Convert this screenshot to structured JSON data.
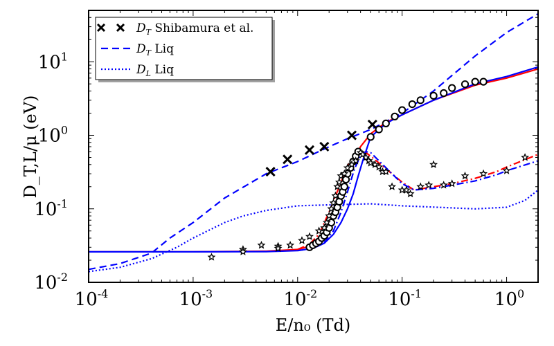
{
  "chart_data": {
    "type": "line",
    "xscale": "log",
    "yscale": "log",
    "xlim": [
      0.0001,
      2
    ],
    "ylim": [
      0.01,
      50
    ],
    "xlabel": "E/n₀ (Td)",
    "ylabel": "D_T,L/μ (eV)",
    "x_ticks": [
      {
        "value": 0.0001,
        "base": "10",
        "exp": "-4"
      },
      {
        "value": 0.001,
        "base": "10",
        "exp": "-3"
      },
      {
        "value": 0.01,
        "base": "10",
        "exp": "-2"
      },
      {
        "value": 0.1,
        "base": "10",
        "exp": "-1"
      },
      {
        "value": 1,
        "base": "10",
        "exp": "0"
      }
    ],
    "y_ticks": [
      {
        "value": 0.01,
        "base": "10",
        "exp": "-2"
      },
      {
        "value": 0.1,
        "base": "10",
        "exp": "-1"
      },
      {
        "value": 1,
        "base": "10",
        "exp": "0"
      },
      {
        "value": 10,
        "base": "10",
        "exp": "1"
      }
    ],
    "legend": {
      "placement": "top-left",
      "entries": [
        {
          "symbol": "D",
          "sub": "T",
          "text": "Shibamura et al.",
          "marker": "x",
          "color": "#000000"
        },
        {
          "symbol": "D",
          "sub": "T",
          "text": "Liq",
          "style": "dashed",
          "color": "#0000ff"
        },
        {
          "symbol": "D",
          "sub": "L",
          "text": "Liq",
          "style": "dotted",
          "color": "#0000ff"
        }
      ]
    },
    "series": [
      {
        "name": "D_T Liq",
        "style": "dashed",
        "color": "#0000ff",
        "x": [
          0.0001,
          0.0002,
          0.0004,
          0.0006,
          0.001,
          0.002,
          0.005,
          0.01,
          0.02,
          0.03,
          0.05,
          0.1,
          0.2,
          0.5,
          1,
          2
        ],
        "y": [
          0.015,
          0.018,
          0.025,
          0.04,
          0.065,
          0.14,
          0.3,
          0.44,
          0.7,
          0.9,
          1.2,
          2.0,
          4.0,
          12,
          25,
          45
        ]
      },
      {
        "name": "D_L Liq",
        "style": "dotted",
        "color": "#0000ff",
        "x": [
          0.0001,
          0.0002,
          0.0004,
          0.0007,
          0.001,
          0.002,
          0.003,
          0.005,
          0.01,
          0.03,
          0.05,
          0.1,
          0.3,
          0.5,
          1,
          1.5,
          2
        ],
        "y": [
          0.014,
          0.016,
          0.021,
          0.03,
          0.04,
          0.065,
          0.08,
          0.095,
          0.11,
          0.115,
          0.117,
          0.11,
          0.103,
          0.1,
          0.105,
          0.13,
          0.18
        ]
      },
      {
        "name": "D_T calc (red)",
        "style": "solid",
        "color": "#ff0000",
        "x": [
          0.0001,
          0.001,
          0.005,
          0.01,
          0.013,
          0.016,
          0.019,
          0.022,
          0.025,
          0.028,
          0.032,
          0.036,
          0.04,
          0.05,
          0.07,
          0.1,
          0.2,
          0.5,
          1,
          2
        ],
        "y": [
          0.026,
          0.026,
          0.0265,
          0.028,
          0.031,
          0.037,
          0.05,
          0.075,
          0.12,
          0.2,
          0.35,
          0.52,
          0.7,
          1.05,
          1.5,
          1.9,
          3.0,
          4.8,
          6.0,
          8.0
        ]
      },
      {
        "name": "D_T calc (blue)",
        "style": "solid",
        "color": "#0000ff",
        "x": [
          0.0001,
          0.001,
          0.005,
          0.01,
          0.014,
          0.018,
          0.022,
          0.026,
          0.03,
          0.034,
          0.038,
          0.042,
          0.05,
          0.07,
          0.1,
          0.2,
          0.5,
          1,
          2
        ],
        "y": [
          0.026,
          0.026,
          0.0262,
          0.027,
          0.029,
          0.034,
          0.045,
          0.065,
          0.1,
          0.16,
          0.28,
          0.45,
          0.95,
          1.45,
          1.9,
          3.0,
          5.0,
          6.3,
          8.5
        ]
      },
      {
        "name": "D_L calc (red)",
        "style": "dashdot",
        "color": "#ff0000",
        "x": [
          0.01,
          0.013,
          0.016,
          0.02,
          0.025,
          0.03,
          0.035,
          0.04,
          0.045,
          0.05,
          0.06,
          0.08,
          0.1,
          0.13,
          0.2,
          0.3,
          0.5,
          0.8,
          1,
          2
        ],
        "y": [
          0.028,
          0.033,
          0.045,
          0.09,
          0.2,
          0.38,
          0.55,
          0.6,
          0.58,
          0.52,
          0.42,
          0.3,
          0.23,
          0.18,
          0.2,
          0.22,
          0.26,
          0.32,
          0.37,
          0.55
        ]
      },
      {
        "name": "D_L calc (blue)",
        "style": "dashdot",
        "color": "#0000ff",
        "x": [
          0.01,
          0.014,
          0.018,
          0.022,
          0.026,
          0.03,
          0.035,
          0.04,
          0.045,
          0.05,
          0.06,
          0.08,
          0.1,
          0.13,
          0.2,
          0.3,
          0.5,
          0.8,
          1,
          2
        ],
        "y": [
          0.027,
          0.029,
          0.035,
          0.05,
          0.09,
          0.17,
          0.35,
          0.52,
          0.6,
          0.58,
          0.45,
          0.3,
          0.22,
          0.18,
          0.19,
          0.21,
          0.24,
          0.29,
          0.33,
          0.45
        ]
      }
    ],
    "scatter": [
      {
        "name": "D_T Shibamura et al.",
        "marker": "x",
        "color": "#000000",
        "x": [
          0.0055,
          0.008,
          0.013,
          0.018,
          0.033,
          0.052
        ],
        "y": [
          0.32,
          0.47,
          0.63,
          0.7,
          1.0,
          1.4
        ]
      },
      {
        "name": "D_T data (circles)",
        "marker": "circle",
        "color": "#000000",
        "x": [
          0.013,
          0.014,
          0.015,
          0.016,
          0.017,
          0.018,
          0.019,
          0.02,
          0.021,
          0.022,
          0.023,
          0.024,
          0.025,
          0.026,
          0.027,
          0.028,
          0.029,
          0.03,
          0.032,
          0.034,
          0.036,
          0.038,
          0.05,
          0.06,
          0.07,
          0.085,
          0.1,
          0.125,
          0.15,
          0.2,
          0.25,
          0.3,
          0.4,
          0.5,
          0.6
        ],
        "y": [
          0.03,
          0.032,
          0.034,
          0.036,
          0.04,
          0.043,
          0.048,
          0.055,
          0.065,
          0.08,
          0.09,
          0.105,
          0.125,
          0.15,
          0.17,
          0.2,
          0.25,
          0.3,
          0.36,
          0.44,
          0.52,
          0.6,
          0.95,
          1.2,
          1.45,
          1.8,
          2.2,
          2.65,
          3.0,
          3.45,
          3.75,
          4.4,
          4.95,
          5.35,
          5.35
        ]
      },
      {
        "name": "D_L data (stars)",
        "marker": "star",
        "color": "#000000",
        "x": [
          0.0015,
          0.003,
          0.003,
          0.0045,
          0.0065,
          0.0065,
          0.0085,
          0.011,
          0.013,
          0.016,
          0.018,
          0.019,
          0.02,
          0.021,
          0.022,
          0.023,
          0.024,
          0.025,
          0.026,
          0.028,
          0.03,
          0.033,
          0.036,
          0.04,
          0.042,
          0.045,
          0.048,
          0.05,
          0.055,
          0.06,
          0.065,
          0.07,
          0.08,
          0.1,
          0.11,
          0.12,
          0.15,
          0.18,
          0.2,
          0.25,
          0.3,
          0.4,
          0.6,
          1.0,
          1.5
        ],
        "y": [
          0.022,
          0.028,
          0.026,
          0.032,
          0.031,
          0.029,
          0.032,
          0.037,
          0.042,
          0.05,
          0.055,
          0.065,
          0.08,
          0.1,
          0.12,
          0.15,
          0.2,
          0.23,
          0.28,
          0.3,
          0.36,
          0.4,
          0.45,
          0.58,
          0.55,
          0.5,
          0.45,
          0.42,
          0.4,
          0.37,
          0.32,
          0.32,
          0.2,
          0.18,
          0.18,
          0.16,
          0.2,
          0.21,
          0.4,
          0.21,
          0.22,
          0.28,
          0.3,
          0.33,
          0.5
        ]
      }
    ]
  }
}
